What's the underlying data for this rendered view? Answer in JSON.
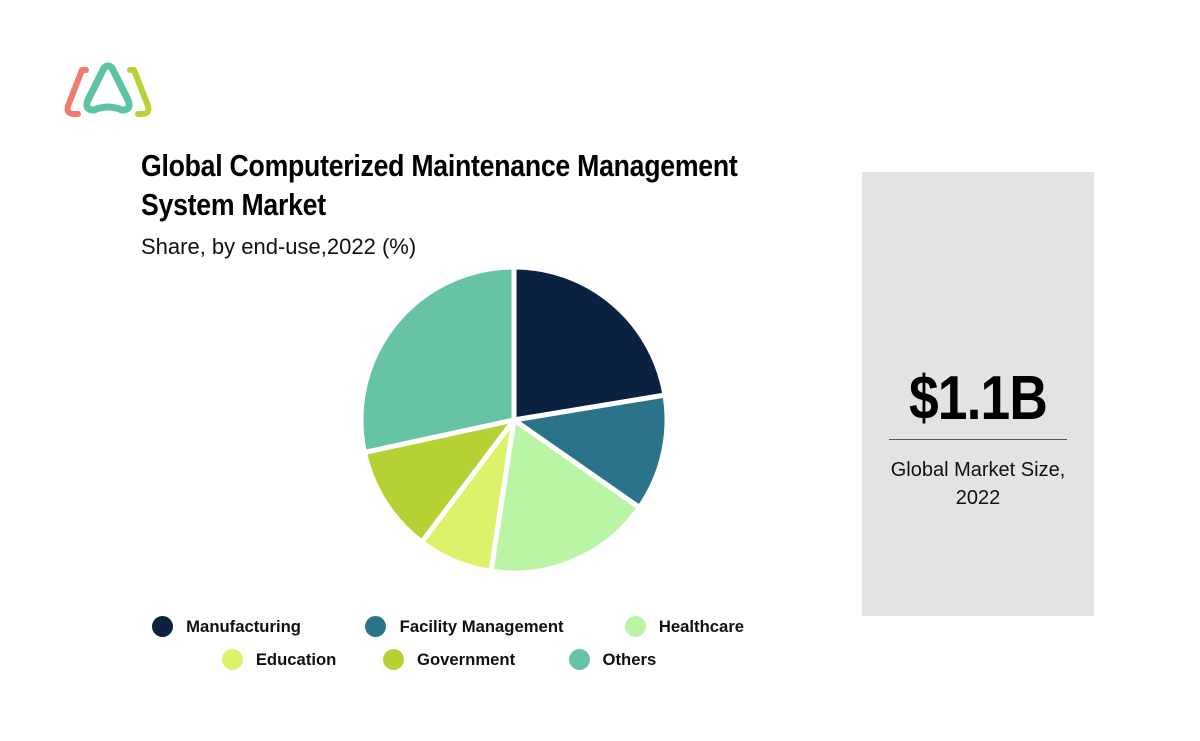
{
  "header": {
    "logo": "brand-logo",
    "title_line1": "Global Computerized Maintenance Management",
    "title_line2": "System Market",
    "subtitle": "Share, by end-use,2022 (%)"
  },
  "chart_data": {
    "type": "pie",
    "title": "Global Computerized Maintenance Management System Market",
    "subtitle": "Share, by end-use,2022 (%)",
    "categories": [
      "Manufacturing",
      "Facility Management",
      "Healthcare",
      "Education",
      "Government",
      "Others"
    ],
    "values": [
      22.4,
      12.3,
      17.7,
      7.9,
      11.3,
      28.4
    ],
    "colors": [
      "#0a2240",
      "#2b738a",
      "#b9f5a4",
      "#dcf26b",
      "#b3d334",
      "#66c4a3"
    ],
    "start_angle_deg": 0,
    "direction": "clockwise",
    "legend_position": "bottom"
  },
  "legend": {
    "items": [
      {
        "label": "Manufacturing",
        "color": "#0a2240"
      },
      {
        "label": "Facility Management",
        "color": "#2b738a"
      },
      {
        "label": "Healthcare",
        "color": "#b9f5a4"
      },
      {
        "label": "Education",
        "color": "#dcf26b"
      },
      {
        "label": "Government",
        "color": "#b3d334"
      },
      {
        "label": "Others",
        "color": "#66c4a3"
      }
    ]
  },
  "panel": {
    "value": "$1.1B",
    "caption_line1": "Global Market Size,",
    "caption_line2": "2022"
  }
}
